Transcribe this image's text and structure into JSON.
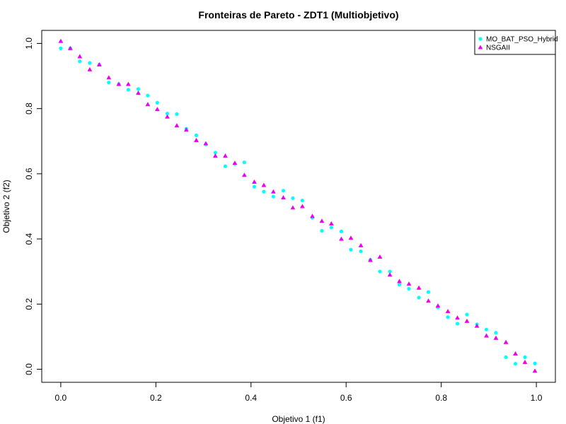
{
  "chart_data": {
    "type": "scatter",
    "title": "Fronteiras de Pareto - ZDT1 (Multiobjetivo)",
    "xlabel": "Objetivo 1 (f1)",
    "ylabel": "Objetivo 2 (f2)",
    "xlim": [
      -0.04,
      1.04
    ],
    "ylim": [
      -0.04,
      1.04
    ],
    "x_ticks": [
      "0.0",
      "0.2",
      "0.4",
      "0.6",
      "0.8",
      "1.0"
    ],
    "y_ticks": [
      "0.0",
      "0.2",
      "0.4",
      "0.6",
      "0.8",
      "1.0"
    ],
    "grid": false,
    "legend_position": "top-right",
    "series": [
      {
        "name": "MO_BAT_PSO_Hybrid",
        "marker": "circle",
        "color": "#00FFFF",
        "points": [
          [
            0.0,
            0.985
          ],
          [
            0.02,
            0.985
          ],
          [
            0.04,
            0.945
          ],
          [
            0.061,
            0.94
          ],
          [
            0.081,
            0.935
          ],
          [
            0.101,
            0.88
          ],
          [
            0.122,
            0.875
          ],
          [
            0.142,
            0.858
          ],
          [
            0.163,
            0.86
          ],
          [
            0.183,
            0.84
          ],
          [
            0.203,
            0.818
          ],
          [
            0.224,
            0.785
          ],
          [
            0.244,
            0.783
          ],
          [
            0.264,
            0.738
          ],
          [
            0.285,
            0.718
          ],
          [
            0.305,
            0.69
          ],
          [
            0.325,
            0.665
          ],
          [
            0.346,
            0.623
          ],
          [
            0.366,
            0.63
          ],
          [
            0.386,
            0.635
          ],
          [
            0.407,
            0.56
          ],
          [
            0.427,
            0.545
          ],
          [
            0.447,
            0.53
          ],
          [
            0.468,
            0.548
          ],
          [
            0.488,
            0.525
          ],
          [
            0.508,
            0.518
          ],
          [
            0.529,
            0.465
          ],
          [
            0.549,
            0.425
          ],
          [
            0.569,
            0.435
          ],
          [
            0.59,
            0.423
          ],
          [
            0.61,
            0.367
          ],
          [
            0.631,
            0.362
          ],
          [
            0.651,
            0.336
          ],
          [
            0.671,
            0.3
          ],
          [
            0.692,
            0.3
          ],
          [
            0.712,
            0.26
          ],
          [
            0.732,
            0.247
          ],
          [
            0.753,
            0.22
          ],
          [
            0.773,
            0.237
          ],
          [
            0.793,
            0.19
          ],
          [
            0.814,
            0.16
          ],
          [
            0.834,
            0.14
          ],
          [
            0.854,
            0.168
          ],
          [
            0.875,
            0.138
          ],
          [
            0.895,
            0.122
          ],
          [
            0.915,
            0.112
          ],
          [
            0.936,
            0.037
          ],
          [
            0.956,
            0.017
          ],
          [
            0.976,
            0.037
          ],
          [
            0.997,
            0.018
          ]
        ]
      },
      {
        "name": "NSGAII",
        "marker": "triangle",
        "color": "#EE00EE",
        "points": [
          [
            0.0,
            1.007
          ],
          [
            0.02,
            0.985
          ],
          [
            0.04,
            0.96
          ],
          [
            0.061,
            0.92
          ],
          [
            0.081,
            0.935
          ],
          [
            0.101,
            0.895
          ],
          [
            0.122,
            0.875
          ],
          [
            0.142,
            0.875
          ],
          [
            0.163,
            0.848
          ],
          [
            0.183,
            0.813
          ],
          [
            0.203,
            0.798
          ],
          [
            0.224,
            0.775
          ],
          [
            0.244,
            0.748
          ],
          [
            0.264,
            0.735
          ],
          [
            0.285,
            0.703
          ],
          [
            0.305,
            0.693
          ],
          [
            0.325,
            0.655
          ],
          [
            0.346,
            0.655
          ],
          [
            0.366,
            0.633
          ],
          [
            0.386,
            0.596
          ],
          [
            0.407,
            0.575
          ],
          [
            0.427,
            0.565
          ],
          [
            0.447,
            0.545
          ],
          [
            0.468,
            0.527
          ],
          [
            0.488,
            0.496
          ],
          [
            0.508,
            0.5
          ],
          [
            0.529,
            0.47
          ],
          [
            0.549,
            0.455
          ],
          [
            0.569,
            0.447
          ],
          [
            0.59,
            0.4
          ],
          [
            0.61,
            0.403
          ],
          [
            0.631,
            0.38
          ],
          [
            0.651,
            0.335
          ],
          [
            0.671,
            0.345
          ],
          [
            0.692,
            0.29
          ],
          [
            0.712,
            0.27
          ],
          [
            0.732,
            0.262
          ],
          [
            0.753,
            0.25
          ],
          [
            0.773,
            0.21
          ],
          [
            0.793,
            0.195
          ],
          [
            0.814,
            0.178
          ],
          [
            0.834,
            0.158
          ],
          [
            0.854,
            0.148
          ],
          [
            0.875,
            0.133
          ],
          [
            0.895,
            0.103
          ],
          [
            0.915,
            0.096
          ],
          [
            0.936,
            0.083
          ],
          [
            0.956,
            0.048
          ],
          [
            0.976,
            0.022
          ],
          [
            0.997,
            -0.005
          ]
        ]
      }
    ]
  }
}
